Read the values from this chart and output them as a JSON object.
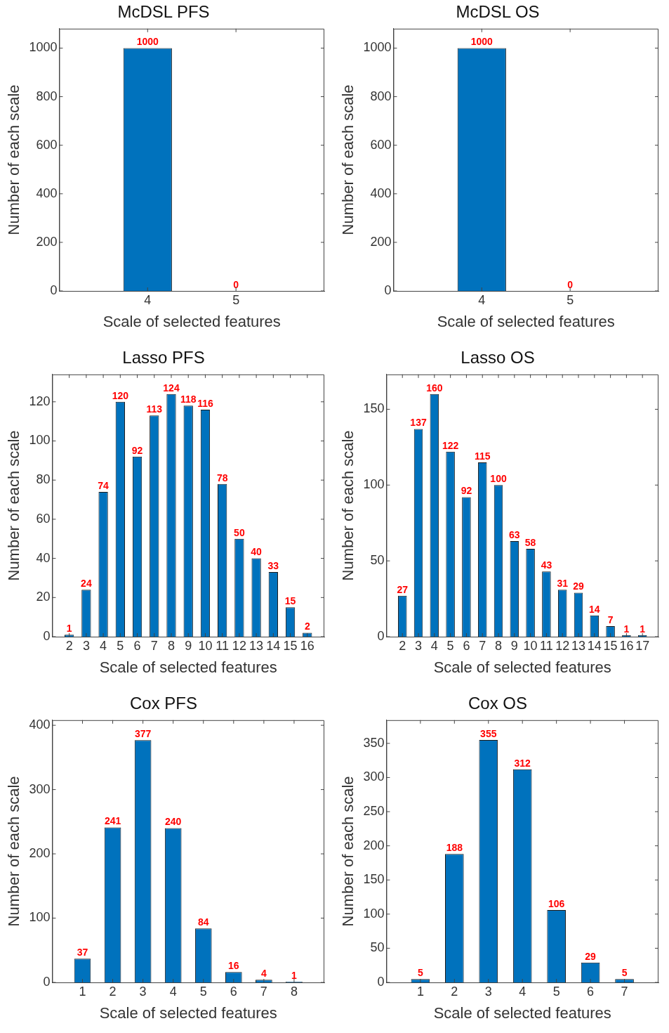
{
  "chart_data": [
    {
      "type": "bar",
      "title": "McDSL PFS",
      "xlabel": "Scale of selected features",
      "ylabel": "Number of each scale",
      "x": [
        4,
        5
      ],
      "values": [
        1000,
        0
      ],
      "color": "#0072bd",
      "xlim": [
        3,
        6
      ],
      "xticks": [
        4,
        5
      ],
      "ylim": [
        0,
        1080
      ],
      "yticks": [
        0,
        200,
        400,
        600,
        800,
        1000
      ],
      "data_labels": true
    },
    {
      "type": "bar",
      "title": "McDSL OS",
      "xlabel": "Scale of selected features",
      "ylabel": "Number of each scale",
      "x": [
        4,
        5
      ],
      "values": [
        1000,
        0
      ],
      "color": "#0072bd",
      "xlim": [
        3,
        6
      ],
      "xticks": [
        4,
        5
      ],
      "ylim": [
        0,
        1080
      ],
      "yticks": [
        0,
        200,
        400,
        600,
        800,
        1000
      ],
      "data_labels": true
    },
    {
      "type": "bar",
      "title": "Lasso PFS",
      "xlabel": "Scale of selected features",
      "ylabel": "Number of each scale",
      "x": [
        2,
        3,
        4,
        5,
        6,
        7,
        8,
        9,
        10,
        11,
        12,
        13,
        14,
        15,
        16
      ],
      "values": [
        1,
        24,
        74,
        120,
        92,
        113,
        124,
        118,
        116,
        78,
        50,
        40,
        33,
        15,
        2
      ],
      "color": "#0072bd",
      "xlim": [
        1,
        17
      ],
      "xticks": [
        2,
        3,
        4,
        5,
        6,
        7,
        8,
        9,
        10,
        11,
        12,
        13,
        14,
        15,
        16
      ],
      "ylim": [
        0,
        134
      ],
      "yticks": [
        0,
        20,
        40,
        60,
        80,
        100,
        120
      ],
      "data_labels": true
    },
    {
      "type": "bar",
      "title": "Lasso OS",
      "xlabel": "Scale of selected features",
      "ylabel": "Number of each scale",
      "x": [
        2,
        3,
        4,
        5,
        6,
        7,
        8,
        9,
        10,
        11,
        12,
        13,
        14,
        15,
        16,
        17
      ],
      "values": [
        27,
        137,
        160,
        122,
        92,
        115,
        100,
        63,
        58,
        43,
        31,
        29,
        14,
        7,
        1,
        1
      ],
      "color": "#0072bd",
      "xlim": [
        1,
        18
      ],
      "xticks": [
        2,
        3,
        4,
        5,
        6,
        7,
        8,
        9,
        10,
        11,
        12,
        13,
        14,
        15,
        16,
        17
      ],
      "ylim": [
        0,
        173
      ],
      "yticks": [
        0,
        50,
        100,
        150
      ],
      "data_labels": true
    },
    {
      "type": "bar",
      "title": "Cox PFS",
      "xlabel": "Scale of selected features",
      "ylabel": "Number of each scale",
      "x": [
        1,
        2,
        3,
        4,
        5,
        6,
        7,
        8
      ],
      "values": [
        37,
        241,
        377,
        240,
        84,
        16,
        4,
        1
      ],
      "color": "#0072bd",
      "xlim": [
        0,
        9
      ],
      "xticks": [
        1,
        2,
        3,
        4,
        5,
        6,
        7,
        8
      ],
      "ylim": [
        0,
        408
      ],
      "yticks": [
        0,
        100,
        200,
        300,
        400
      ],
      "data_labels": true
    },
    {
      "type": "bar",
      "title": "Cox OS",
      "xlabel": "Scale of selected features",
      "ylabel": "Number of each scale",
      "x": [
        1,
        2,
        3,
        4,
        5,
        6,
        7
      ],
      "values": [
        5,
        188,
        355,
        312,
        106,
        29,
        5
      ],
      "color": "#0072bd",
      "xlim": [
        0,
        8
      ],
      "xticks": [
        1,
        2,
        3,
        4,
        5,
        6,
        7
      ],
      "ylim": [
        0,
        384
      ],
      "yticks": [
        0,
        50,
        100,
        150,
        200,
        250,
        300,
        350
      ],
      "data_labels": true
    }
  ]
}
